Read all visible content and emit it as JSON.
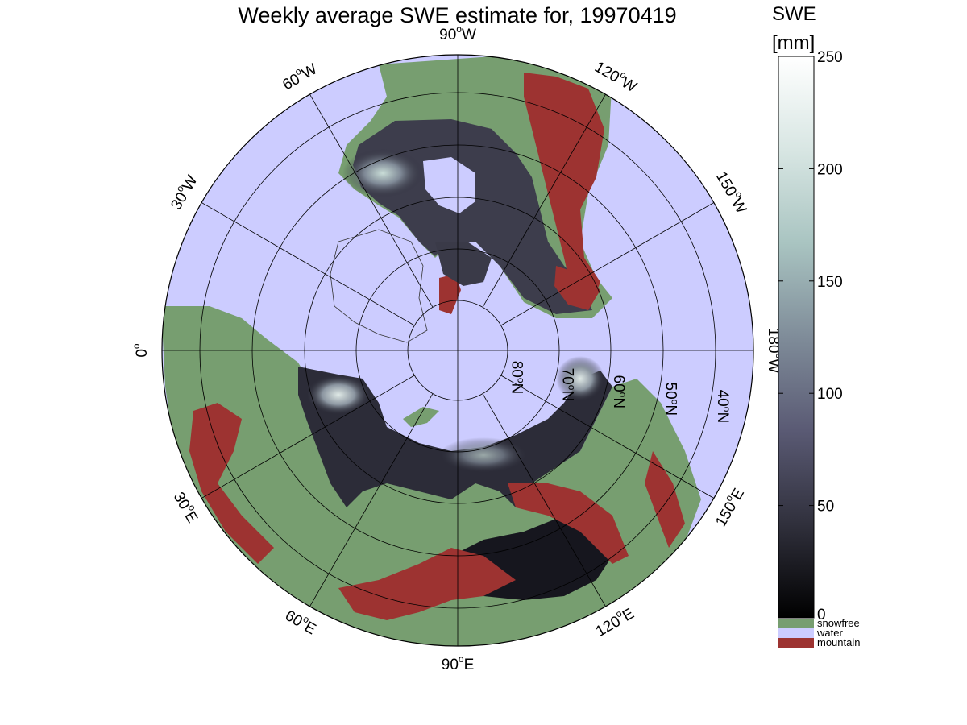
{
  "title": "Weekly average SWE estimate for, 19970419",
  "colorbar": {
    "title_line1": "SWE",
    "title_line2": "[mm]",
    "ticks": [
      "250",
      "200",
      "150",
      "100",
      "50",
      "0"
    ],
    "tick_values": [
      250,
      200,
      150,
      100,
      50,
      0
    ],
    "range": [
      0,
      250
    ],
    "gradient_colors": [
      "#000000",
      "#30303c",
      "#5a5a74",
      "#7f8c99",
      "#a9c4c1",
      "#d8e6e3",
      "#ffffff"
    ]
  },
  "legend": [
    {
      "label": "snowfree",
      "color": "#779e70"
    },
    {
      "label": "water",
      "color": "#ccccff"
    },
    {
      "label": "mountain",
      "color": "#9d3331"
    }
  ],
  "longitude_labels": [
    {
      "text": "90",
      "suffix": "W"
    },
    {
      "text": "120",
      "suffix": "W"
    },
    {
      "text": "150",
      "suffix": "W"
    },
    {
      "text": "180",
      "suffix": "W"
    },
    {
      "text": "150",
      "suffix": "E"
    },
    {
      "text": "120",
      "suffix": "E"
    },
    {
      "text": "90",
      "suffix": "E"
    },
    {
      "text": "60",
      "suffix": "E"
    },
    {
      "text": "30",
      "suffix": "E"
    },
    {
      "text": "0",
      "suffix": ""
    },
    {
      "text": "30",
      "suffix": "W"
    },
    {
      "text": "60",
      "suffix": "W"
    }
  ],
  "latitude_labels": [
    {
      "text": "80",
      "suffix": "N"
    },
    {
      "text": "70",
      "suffix": "N"
    },
    {
      "text": "60",
      "suffix": "N"
    },
    {
      "text": "50",
      "suffix": "N"
    },
    {
      "text": "40",
      "suffix": "N"
    }
  ],
  "degree_symbol": "o"
}
